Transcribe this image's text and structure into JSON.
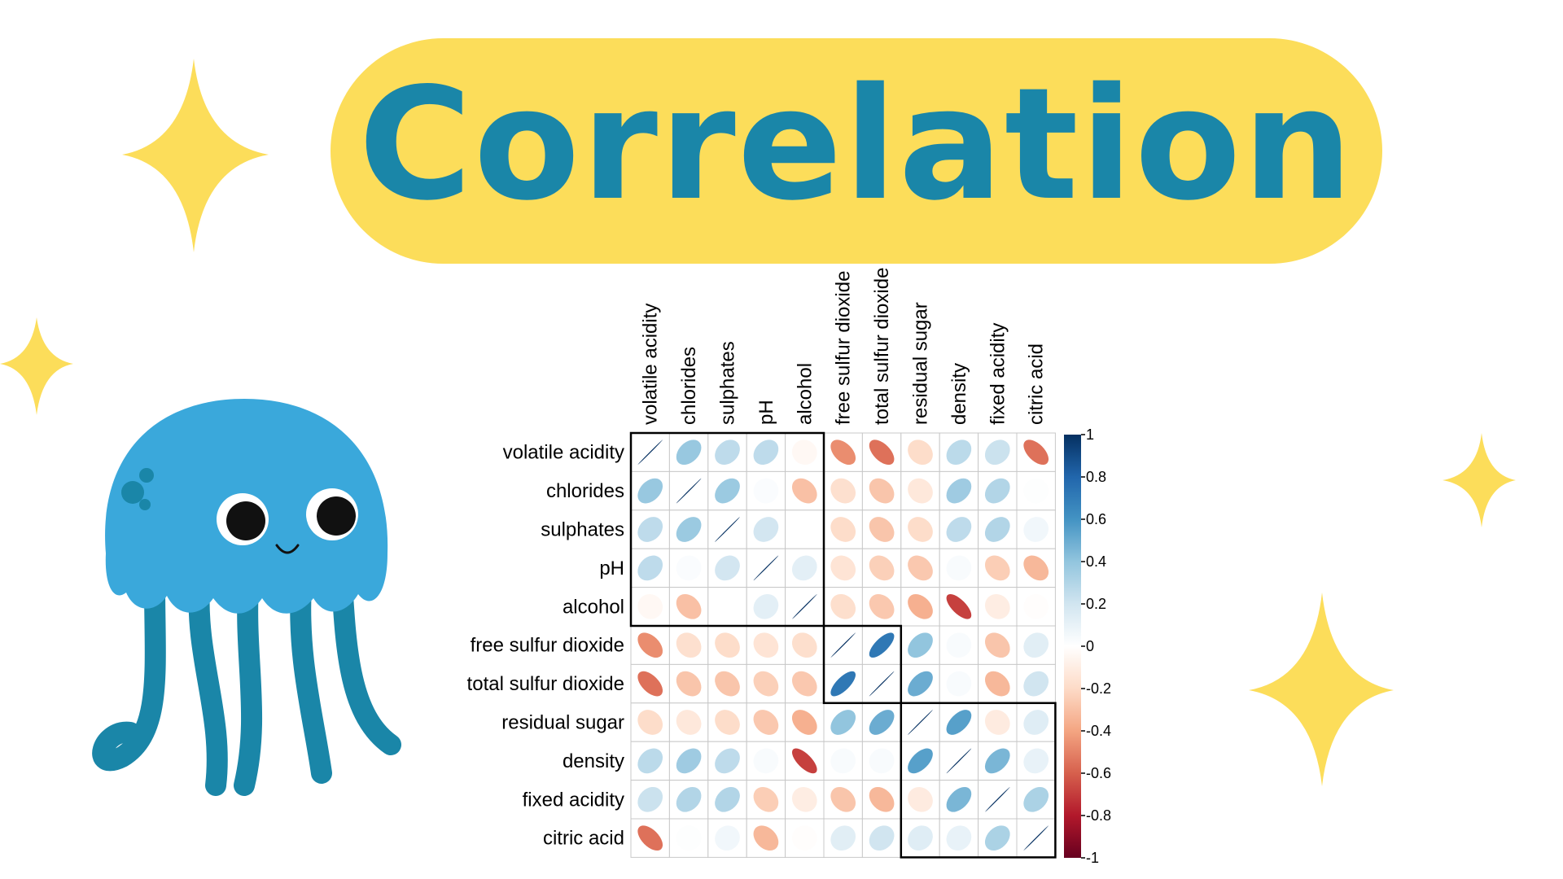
{
  "title": "Correlation",
  "decor": {
    "sparkle_color": "#fcdd5a",
    "pill_color": "#fcdd5a",
    "title_color": "#1a86a8",
    "mascot": "jellyfish"
  },
  "chart_data": {
    "type": "heatmap",
    "glyph": "ellipse",
    "variables": [
      "volatile acidity",
      "chlorides",
      "sulphates",
      "pH",
      "alcohol",
      "free sulfur dioxide",
      "total sulfur dioxide",
      "residual sugar",
      "density",
      "fixed acidity",
      "citric acid"
    ],
    "matrix": [
      [
        1.0,
        0.38,
        0.26,
        0.26,
        -0.04,
        -0.47,
        -0.55,
        -0.19,
        0.27,
        0.22,
        -0.55
      ],
      [
        0.38,
        1.0,
        0.37,
        0.02,
        -0.3,
        -0.17,
        -0.28,
        -0.13,
        0.36,
        0.3,
        0.01
      ],
      [
        0.26,
        0.37,
        1.0,
        0.19,
        0.0,
        -0.19,
        -0.28,
        -0.19,
        0.26,
        0.3,
        0.06
      ],
      [
        0.26,
        0.02,
        0.19,
        1.0,
        0.12,
        -0.15,
        -0.24,
        -0.27,
        0.03,
        -0.25,
        -0.33
      ],
      [
        -0.04,
        -0.3,
        0.0,
        0.12,
        1.0,
        -0.18,
        -0.27,
        -0.36,
        -0.69,
        -0.1,
        -0.01
      ],
      [
        -0.47,
        -0.17,
        -0.19,
        -0.15,
        -0.18,
        1.0,
        0.72,
        0.4,
        0.03,
        -0.28,
        0.13
      ],
      [
        -0.55,
        -0.28,
        -0.28,
        -0.24,
        -0.27,
        0.72,
        1.0,
        0.5,
        0.03,
        -0.33,
        0.2
      ],
      [
        -0.19,
        -0.13,
        -0.19,
        -0.27,
        -0.36,
        0.4,
        0.5,
        1.0,
        0.55,
        -0.11,
        0.14
      ],
      [
        0.27,
        0.36,
        0.26,
        0.03,
        -0.69,
        0.03,
        0.03,
        0.55,
        1.0,
        0.46,
        0.1
      ],
      [
        0.22,
        0.3,
        0.3,
        -0.25,
        -0.1,
        -0.28,
        -0.33,
        -0.11,
        0.46,
        1.0,
        0.32
      ],
      [
        -0.55,
        0.01,
        0.06,
        -0.33,
        -0.01,
        0.13,
        0.2,
        0.14,
        0.1,
        0.32,
        1.0
      ]
    ],
    "clusters": [
      [
        0,
        4
      ],
      [
        5,
        6
      ],
      [
        7,
        10
      ]
    ],
    "colorbar": {
      "min": -1,
      "max": 1,
      "ticks": [
        "1",
        "0.8",
        "0.6",
        "0.4",
        "0.2",
        "0",
        "-0.2",
        "-0.4",
        "-0.6",
        "-0.8",
        "-1"
      ]
    },
    "colors": {
      "negative": "#67001f",
      "neutral": "#ffffff",
      "positive": "#053061"
    }
  }
}
